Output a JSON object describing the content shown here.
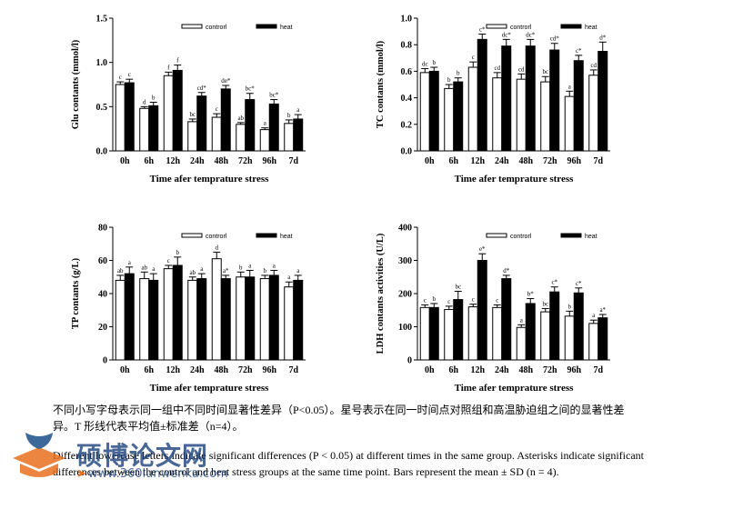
{
  "chart_data": [
    {
      "type": "bar",
      "title": "",
      "xlabel": "Time afer temprature stress",
      "ylabel": "Glu contants (mmol/l)",
      "ylim": [
        0,
        1.5
      ],
      "yticks": [
        "0.0",
        "0.5",
        "1.0",
        "1.5"
      ],
      "categories": [
        "0h",
        "6h",
        "12h",
        "24h",
        "48h",
        "72h",
        "96h",
        "7d"
      ],
      "legend": [
        "controrl",
        "heat"
      ],
      "series": [
        {
          "name": "controrl",
          "values": [
            0.75,
            0.48,
            0.85,
            0.33,
            0.38,
            0.3,
            0.24,
            0.31
          ],
          "errors": [
            0.03,
            0.02,
            0.04,
            0.03,
            0.04,
            0.02,
            0.02,
            0.04
          ],
          "labels": [
            "c",
            "d",
            "f",
            "bc",
            "c",
            "ab",
            "a",
            "b"
          ]
        },
        {
          "name": "heat",
          "values": [
            0.77,
            0.51,
            0.91,
            0.62,
            0.7,
            0.58,
            0.53,
            0.36
          ],
          "errors": [
            0.04,
            0.04,
            0.06,
            0.04,
            0.04,
            0.07,
            0.05,
            0.05
          ],
          "labels": [
            "c",
            "b",
            "f",
            "cd*",
            "de*",
            "bc*",
            "bc*",
            "a"
          ]
        }
      ]
    },
    {
      "type": "bar",
      "title": "",
      "xlabel": "Time afer temprature stress",
      "ylabel": "TC contants (mmol/l)",
      "ylim": [
        0,
        1.0
      ],
      "yticks": [
        "0.0",
        "0.2",
        "0.4",
        "0.6",
        "0.8",
        "1.0"
      ],
      "categories": [
        "0h",
        "6h",
        "12h",
        "24h",
        "48h",
        "72h",
        "96h",
        "7d"
      ],
      "legend": [
        "controrl",
        "heat"
      ],
      "series": [
        {
          "name": "controrl",
          "values": [
            0.59,
            0.47,
            0.63,
            0.55,
            0.54,
            0.52,
            0.41,
            0.57
          ],
          "errors": [
            0.03,
            0.03,
            0.04,
            0.04,
            0.04,
            0.04,
            0.04,
            0.04
          ],
          "labels": [
            "dc",
            "b",
            "c",
            "cd",
            "cd",
            "bc",
            "a",
            "cd"
          ]
        },
        {
          "name": "heat",
          "values": [
            0.6,
            0.52,
            0.84,
            0.79,
            0.79,
            0.76,
            0.68,
            0.75
          ],
          "errors": [
            0.03,
            0.03,
            0.04,
            0.05,
            0.05,
            0.05,
            0.04,
            0.07
          ],
          "labels": [
            "b",
            "b",
            "c*",
            "dc*",
            "dc*",
            "cd*",
            "c*",
            "d*"
          ]
        }
      ]
    },
    {
      "type": "bar",
      "title": "",
      "xlabel": "Time afer temprature stress",
      "ylabel": "TP contants (g/L)",
      "ylim": [
        0,
        80
      ],
      "yticks": [
        "0",
        "20",
        "40",
        "60",
        "80"
      ],
      "categories": [
        "0h",
        "6h",
        "12h",
        "24h",
        "48h",
        "72h",
        "96h",
        "7d"
      ],
      "legend": [
        "controrl",
        "heat"
      ],
      "series": [
        {
          "name": "controrl",
          "values": [
            48,
            49,
            55,
            48,
            61,
            50,
            49,
            44
          ],
          "errors": [
            3,
            4,
            2,
            2,
            4,
            3,
            2,
            3
          ],
          "labels": [
            "ab",
            "ab",
            "c",
            "ab",
            "d",
            "b",
            "b",
            "a"
          ]
        },
        {
          "name": "heat",
          "values": [
            52,
            48,
            57,
            49,
            49,
            50,
            51,
            48
          ],
          "errors": [
            4,
            4,
            5,
            3,
            2,
            4,
            3,
            3
          ],
          "labels": [
            "a",
            "a",
            "b",
            "a",
            "a*",
            "a",
            "a",
            "a"
          ]
        }
      ]
    },
    {
      "type": "bar",
      "title": "",
      "xlabel": "Time afer temprature stress",
      "ylabel": "LDH  contants activities (U/L)",
      "ylim": [
        0,
        400
      ],
      "yticks": [
        "0",
        "100",
        "200",
        "300",
        "400"
      ],
      "categories": [
        "0h",
        "6h",
        "12h",
        "24h",
        "48h",
        "72h",
        "96h",
        "7d"
      ],
      "legend": [
        "controrl",
        "heat"
      ],
      "series": [
        {
          "name": "controrl",
          "values": [
            158,
            152,
            160,
            158,
            98,
            145,
            132,
            110
          ],
          "errors": [
            8,
            10,
            8,
            8,
            8,
            10,
            15,
            10
          ],
          "labels": [
            "c",
            "c",
            "c",
            "c",
            "a",
            "bc",
            "b",
            "a"
          ]
        },
        {
          "name": "heat",
          "values": [
            158,
            182,
            300,
            245,
            170,
            205,
            202,
            127
          ],
          "errors": [
            12,
            25,
            20,
            10,
            15,
            15,
            15,
            10
          ],
          "labels": [
            "b",
            "bc",
            "e*",
            "d*",
            "b*",
            "c*",
            "c*",
            "a*"
          ]
        }
      ]
    }
  ],
  "caption": {
    "chinese": "不同小写字母表示同一组中不同时间显著性差异（P<0.05）。星号表示在同一时间点对照组和高温胁迫组之间的显著性差异。T 形线代表平均值±标准差（n=4）。",
    "english": "Different lowercase letters indicate significant differences (P < 0.05) at different times in the same group. Asterisks indicate significant differences between the control and heat stress groups at the same time point. Bars represent the mean ± SD (n = 4)."
  },
  "watermark": {
    "name": "硕博论文网",
    "url": "www.360lunwenku.com",
    "colors": {
      "blue": "#1a4f8a",
      "orange": "#e9701e"
    }
  }
}
